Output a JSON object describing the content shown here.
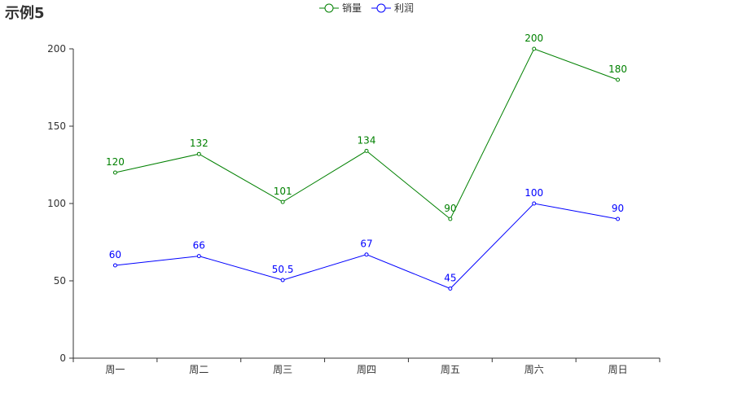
{
  "chart_data": {
    "type": "line",
    "title": "示例5",
    "categories": [
      "周一",
      "周二",
      "周三",
      "周四",
      "周五",
      "周六",
      "周日"
    ],
    "series": [
      {
        "name": "销量",
        "color": "#008000",
        "values": [
          120,
          132,
          101,
          134,
          90,
          200,
          180
        ],
        "labels": [
          "120",
          "132",
          "101",
          "134",
          "90",
          "200",
          "180"
        ]
      },
      {
        "name": "利润",
        "color": "#0000ff",
        "values": [
          60,
          66,
          50.5,
          67,
          45,
          100,
          90
        ],
        "labels": [
          "60",
          "66",
          "50.5",
          "67",
          "45",
          "100",
          "90"
        ]
      }
    ],
    "ylim": [
      0,
      200
    ],
    "yticks": [
      "0",
      "50",
      "100",
      "150",
      "200"
    ],
    "grid": false,
    "legend": "top-center",
    "marker": "empty-circle-icon"
  }
}
